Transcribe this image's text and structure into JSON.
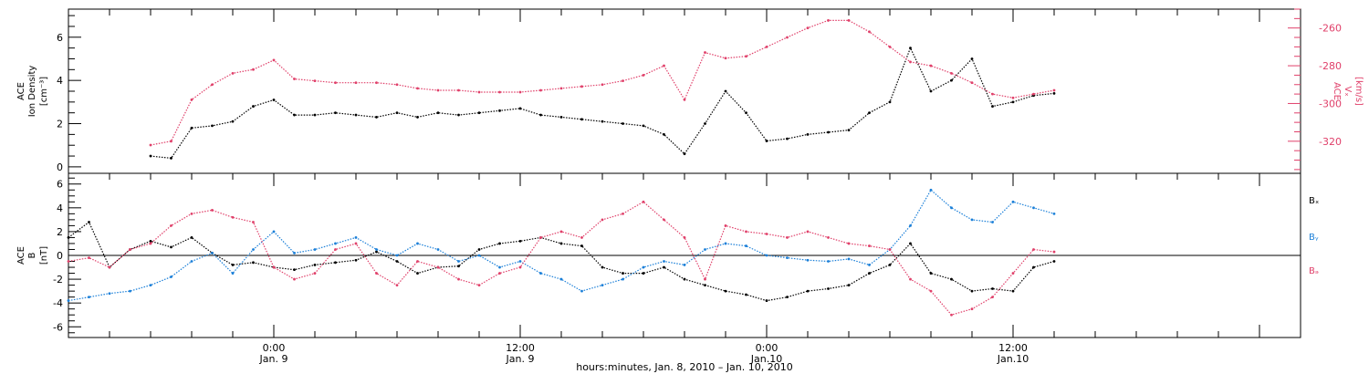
{
  "chart_data": [
    {
      "type": "scatter",
      "panel": "top",
      "ylabel_left": [
        "ACE",
        "Ion Density",
        "[cm⁻³]"
      ],
      "ylabel_right": [
        "ACE",
        "Vₓ",
        "[km/s]"
      ],
      "left_ylim": [
        -0.3,
        7.3
      ],
      "left_ticks": [
        "0",
        "2",
        "4",
        "6"
      ],
      "right_ylim": [
        -337,
        -250
      ],
      "right_ticks": [
        "-260",
        "-280",
        "-300",
        "-320"
      ],
      "series": [
        {
          "axis": "left",
          "color": "#000000",
          "x": [
            -6,
            -5,
            -4,
            -3,
            -2,
            -1,
            0,
            1,
            2,
            3,
            4,
            5,
            6,
            7,
            8,
            9,
            10,
            11,
            12,
            13,
            14,
            15,
            16,
            17,
            18,
            19,
            20,
            21,
            22,
            23,
            24,
            25,
            26,
            27,
            28,
            29,
            30,
            31,
            32,
            33,
            34,
            35,
            36,
            37,
            38
          ],
          "y": [
            0.5,
            0.4,
            1.8,
            1.9,
            2.1,
            2.8,
            3.1,
            2.4,
            2.4,
            2.5,
            2.4,
            2.3,
            2.5,
            2.3,
            2.5,
            2.4,
            2.5,
            2.6,
            2.7,
            2.4,
            2.3,
            2.2,
            2.1,
            2.0,
            1.9,
            1.5,
            0.6,
            2.0,
            3.5,
            2.5,
            1.2,
            1.3,
            1.5,
            1.6,
            1.7,
            2.5,
            3.0,
            5.5,
            3.5,
            4.0,
            5.0,
            2.8,
            3.0,
            3.3,
            3.4
          ]
        },
        {
          "axis": "right",
          "color": "#e0406a",
          "x": [
            -6,
            -5,
            -4,
            -3,
            -2,
            -1,
            0,
            1,
            2,
            3,
            4,
            5,
            6,
            7,
            8,
            9,
            10,
            11,
            12,
            13,
            14,
            15,
            16,
            17,
            18,
            19,
            20,
            21,
            22,
            23,
            24,
            25,
            26,
            27,
            28,
            29,
            30,
            31,
            32,
            33,
            34,
            35,
            36,
            37,
            38
          ],
          "y": [
            -322,
            -320,
            -298,
            -290,
            -284,
            -282,
            -277,
            -287,
            -288,
            -289,
            -289,
            -289,
            -290,
            -292,
            -293,
            -293,
            -294,
            -294,
            -294,
            -293,
            -292,
            -291,
            -290,
            -288,
            -285,
            -280,
            -298,
            -273,
            -276,
            -275,
            -270,
            -265,
            -260,
            -256,
            -256,
            -262,
            -270,
            -278,
            -280,
            -284,
            -289,
            -295,
            -297,
            -295,
            -293
          ]
        }
      ]
    },
    {
      "type": "scatter",
      "panel": "bottom",
      "ylabel_left": [
        "ACE",
        "B",
        "[nT]"
      ],
      "ylim": [
        -6.9,
        6.9
      ],
      "ticks": [
        "6",
        "4",
        "2",
        "0",
        "-2",
        "-4",
        "-6"
      ],
      "xlim": [
        -10,
        50
      ],
      "xticks": [
        {
          "x": 0,
          "time": "0:00",
          "date": "Jan. 9"
        },
        {
          "x": 12,
          "time": "12:00",
          "date": "Jan. 9"
        },
        {
          "x": 24,
          "time": "0:00",
          "date": "Jan.10"
        },
        {
          "x": 36,
          "time": "12:00",
          "date": "Jan.10"
        }
      ],
      "xlabel": "hours:minutes, Jan.  8, 2010 – Jan. 10, 2010",
      "series": [
        {
          "name": "Bₓ",
          "color": "#000000",
          "x": [
            -10,
            -9,
            -8,
            -7,
            -6,
            -5,
            -4,
            -3,
            -2,
            -1,
            0,
            1,
            2,
            3,
            4,
            5,
            6,
            7,
            8,
            9,
            10,
            11,
            12,
            13,
            14,
            15,
            16,
            17,
            18,
            19,
            20,
            21,
            22,
            23,
            24,
            25,
            26,
            27,
            28,
            29,
            30,
            31,
            32,
            33,
            34,
            35,
            36,
            37,
            38
          ],
          "y": [
            1.5,
            2.8,
            -1.0,
            0.5,
            1.2,
            0.7,
            1.5,
            0.2,
            -0.8,
            -0.6,
            -1.0,
            -1.2,
            -0.8,
            -0.6,
            -0.4,
            0.3,
            -0.5,
            -1.5,
            -1.0,
            -0.9,
            0.5,
            1.0,
            1.2,
            1.5,
            1.0,
            0.8,
            -1.0,
            -1.5,
            -1.5,
            -1.0,
            -2.0,
            -2.5,
            -3.0,
            -3.3,
            -3.8,
            -3.5,
            -3.0,
            -2.8,
            -2.5,
            -1.5,
            -0.8,
            1.0,
            -1.5,
            -2.0,
            -3.0,
            -2.8,
            -3.0,
            -1.0,
            -0.5
          ]
        },
        {
          "name": "Bᵧ",
          "color": "#1a7fd8",
          "x": [
            -10,
            -9,
            -8,
            -7,
            -6,
            -5,
            -4,
            -3,
            -2,
            -1,
            0,
            1,
            2,
            3,
            4,
            5,
            6,
            7,
            8,
            9,
            10,
            11,
            12,
            13,
            14,
            15,
            16,
            17,
            18,
            19,
            20,
            21,
            22,
            23,
            24,
            25,
            26,
            27,
            28,
            29,
            30,
            31,
            32,
            33,
            34,
            35,
            36,
            37,
            38
          ],
          "y": [
            -3.8,
            -3.5,
            -3.2,
            -3.0,
            -2.5,
            -1.8,
            -0.5,
            0.2,
            -1.5,
            0.5,
            2.0,
            0.2,
            0.5,
            1.0,
            1.5,
            0.5,
            0.0,
            1.0,
            0.5,
            -0.5,
            0.0,
            -1.0,
            -0.5,
            -1.5,
            -2.0,
            -3.0,
            -2.5,
            -2.0,
            -1.0,
            -0.5,
            -0.8,
            0.5,
            1.0,
            0.8,
            0.0,
            -0.2,
            -0.4,
            -0.5,
            -0.3,
            -0.8,
            0.5,
            2.5,
            5.5,
            4.0,
            3.0,
            2.8,
            4.5,
            4.0,
            3.5
          ]
        },
        {
          "name": "Bₔ",
          "color": "#e0406a",
          "x": [
            -10,
            -9,
            -8,
            -7,
            -6,
            -5,
            -4,
            -3,
            -2,
            -1,
            0,
            1,
            2,
            3,
            4,
            5,
            6,
            7,
            8,
            9,
            10,
            11,
            12,
            13,
            14,
            15,
            16,
            17,
            18,
            19,
            20,
            21,
            22,
            23,
            24,
            25,
            26,
            27,
            28,
            29,
            30,
            31,
            32,
            33,
            34,
            35,
            36,
            37,
            38
          ],
          "y": [
            -0.5,
            -0.2,
            -1.0,
            0.5,
            1.0,
            2.5,
            3.5,
            3.8,
            3.2,
            2.8,
            -1.0,
            -2.0,
            -1.5,
            0.5,
            1.0,
            -1.5,
            -2.5,
            -0.5,
            -1.0,
            -2.0,
            -2.5,
            -1.5,
            -1.0,
            1.5,
            2.0,
            1.5,
            3.0,
            3.5,
            4.5,
            3.0,
            1.5,
            -2.0,
            2.5,
            2.0,
            1.8,
            1.5,
            2.0,
            1.5,
            1.0,
            0.8,
            0.5,
            -2.0,
            -3.0,
            -5.0,
            -4.5,
            -3.5,
            -1.5,
            0.5,
            0.3
          ]
        }
      ]
    }
  ]
}
